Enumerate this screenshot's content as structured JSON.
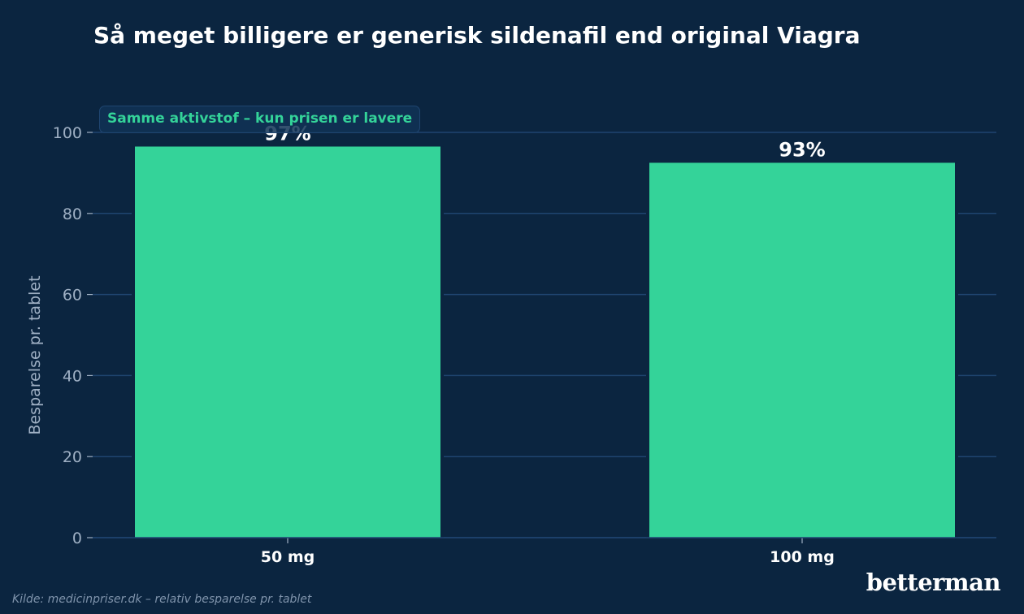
{
  "chart_data": {
    "type": "bar",
    "title": "Så meget billigere er generisk sildenafil end original Viagra",
    "categories": [
      "50 mg",
      "100 mg"
    ],
    "values": [
      96.5,
      92.5
    ],
    "data_labels": [
      "97%",
      "93%"
    ],
    "xlabel": "",
    "ylabel": "Besparelse pr. tablet",
    "ylim": [
      0,
      100
    ],
    "yticks": [
      "0",
      "20",
      "40",
      "60",
      "80",
      "100"
    ],
    "grid": true,
    "annotation": "Samme aktivstof – kun prisen er lavere",
    "colors": {
      "background": "#0b2540",
      "bar": "#34d399",
      "grid": "#1f4570",
      "tick_text": "#9fb0c4",
      "category_text": "#ffffff",
      "value_text": "#ffffff",
      "annotation_text": "#34d399"
    }
  },
  "brand": {
    "logo_text": "betterman"
  },
  "footer": {
    "source": "Kilde: medicinpriser.dk – relativ besparelse pr. tablet"
  }
}
